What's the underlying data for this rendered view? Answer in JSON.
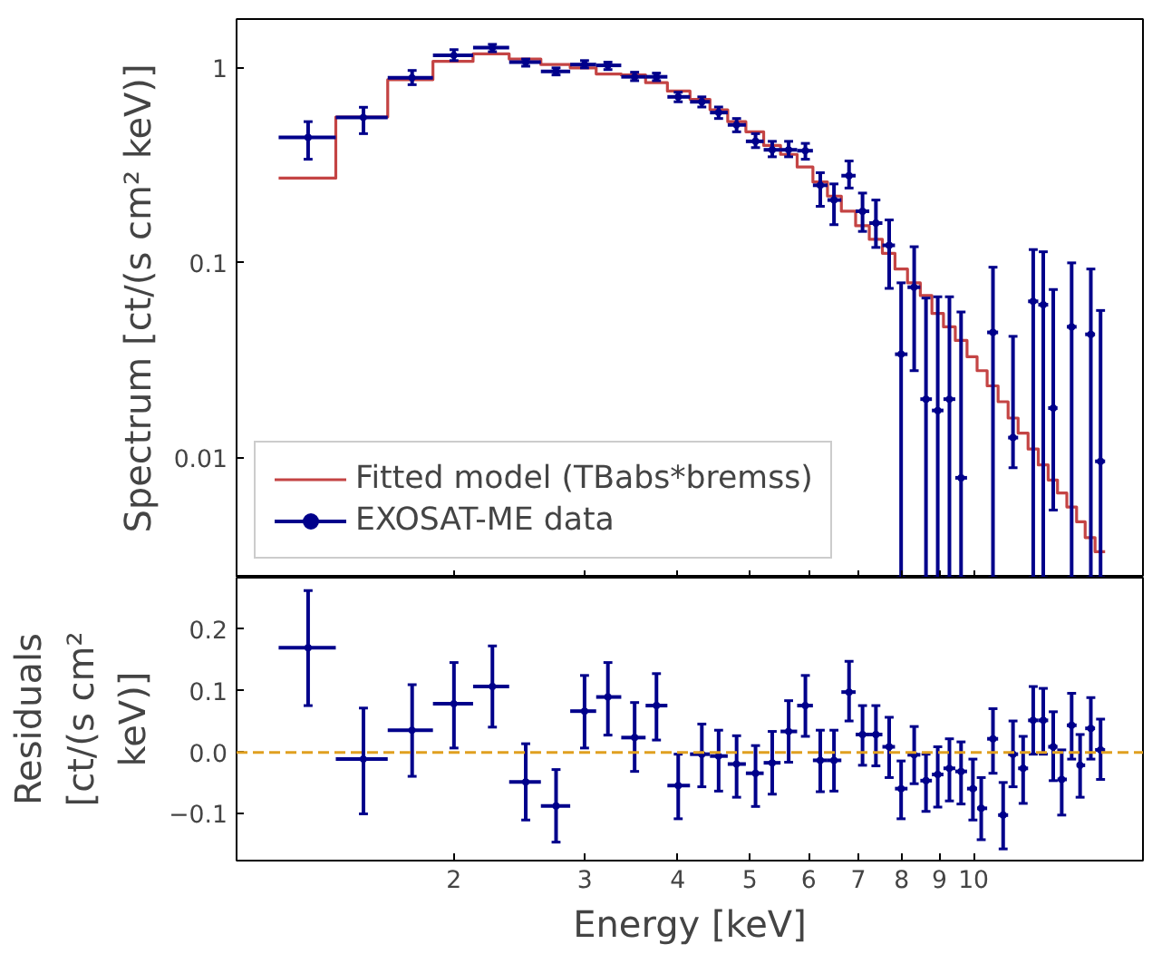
{
  "chart_data": [
    {
      "type": "scatter",
      "ylabel": "Spectrum [ct/(s cm² keV)]",
      "log": "xy",
      "xlim": [
        1.02,
        16.9
      ],
      "ylim": [
        0.00243,
        1.78
      ],
      "xticks": [
        2,
        3,
        4,
        5,
        6,
        7,
        8,
        9,
        10
      ],
      "yticks": [
        0.01,
        0.1,
        1
      ],
      "tick_labels": "y",
      "grid": false,
      "legend": "bottom left",
      "x": [
        1.273,
        1.511,
        1.757,
        2.0,
        2.253,
        2.498,
        2.744,
        2.997,
        3.222,
        3.5,
        3.745,
        4.006,
        4.31,
        4.54,
        4.8,
        5.09,
        5.36,
        5.64,
        5.94,
        6.22,
        6.49,
        6.8,
        7.09,
        7.39,
        7.7,
        7.99,
        8.32,
        8.63,
        8.95,
        9.28,
        9.62,
        9.98,
        10.24,
        10.62,
        10.96,
        11.3,
        11.66,
        12.03,
        12.41,
        12.8,
        13.14,
        13.55,
        13.91,
        14.38,
        14.82
      ],
      "series": [
        {
          "type": "step",
          "name": "Fitted model (TBabs*bremss)",
          "color": "#c44444",
          "line_style": "solid",
          "x": [
            1.162,
            1.387,
            1.629,
            1.874,
            2.122,
            2.373,
            2.618,
            2.867,
            3.107,
            3.358,
            3.621,
            3.874,
            4.155,
            4.42,
            4.67,
            4.94,
            5.22,
            5.5,
            5.79,
            6.08,
            6.36,
            6.64,
            6.94,
            7.24,
            7.54,
            7.84,
            8.15,
            8.48,
            8.79,
            9.11,
            9.45,
            9.8,
            10.11,
            10.43,
            10.79,
            11.13,
            11.48,
            11.84,
            12.22,
            12.6,
            12.97,
            13.35,
            13.76,
            14.13,
            14.57,
            15.03
          ],
          "values": [
            0.272,
            0.56,
            0.87,
            1.08,
            1.18,
            1.11,
            1.04,
            1.0,
            0.93,
            0.92,
            0.84,
            0.76,
            0.69,
            0.61,
            0.53,
            0.47,
            0.4,
            0.36,
            0.31,
            0.26,
            0.22,
            0.184,
            0.155,
            0.132,
            0.112,
            0.093,
            0.079,
            0.068,
            0.055,
            0.047,
            0.04,
            0.033,
            0.028,
            0.0234,
            0.0194,
            0.016,
            0.0134,
            0.0111,
            0.0092,
            0.0077,
            0.0066,
            0.0056,
            0.0047,
            0.0039,
            0.0033,
            0.0033
          ]
        },
        {
          "type": "scatter",
          "name": "EXOSAT-ME data",
          "color": "#00008b",
          "marker": "circle",
          "values": [
            0.44,
            0.557,
            0.89,
            1.16,
            1.27,
            1.07,
            0.96,
            1.04,
            1.03,
            0.9,
            0.9,
            0.71,
            0.67,
            0.59,
            0.51,
            0.42,
            0.38,
            0.38,
            0.376,
            0.25,
            0.21,
            0.28,
            0.184,
            0.16,
            0.123,
            0.034,
            0.075,
            0.02,
            0.0175,
            0.02,
            0.0079,
            null,
            null,
            0.044,
            null,
            0.0127,
            null,
            0.0635,
            0.061,
            0.018,
            null,
            0.047,
            null,
            0.043,
            0.0096
          ],
          "errors": [
            [
              0.34,
              0.53
            ],
            [
              0.46,
              0.628
            ],
            [
              0.82,
              0.97
            ],
            [
              1.09,
              1.24
            ],
            [
              1.21,
              1.32
            ],
            [
              1.02,
              1.11
            ],
            [
              0.92,
              1.0
            ],
            [
              1.0,
              1.09
            ],
            [
              0.98,
              1.07
            ],
            [
              0.86,
              0.95
            ],
            [
              0.86,
              0.94
            ],
            [
              0.67,
              0.75
            ],
            [
              0.63,
              0.71
            ],
            [
              0.55,
              0.63
            ],
            [
              0.47,
              0.55
            ],
            [
              0.39,
              0.46
            ],
            [
              0.35,
              0.42
            ],
            [
              0.35,
              0.42
            ],
            [
              0.34,
              0.41
            ],
            [
              0.195,
              0.29
            ],
            [
              0.157,
              0.254
            ],
            [
              0.242,
              0.333
            ],
            [
              0.145,
              0.228
            ],
            [
              0.12,
              0.21
            ],
            [
              0.074,
              0.166
            ],
            [
              0.00243,
              0.079
            ],
            [
              0.028,
              0.121
            ],
            [
              0.00243,
              0.066
            ],
            [
              0.00243,
              0.067
            ],
            [
              0.00243,
              0.067
            ],
            [
              0.00243,
              0.056
            ],
            null,
            null,
            [
              0.00243,
              0.095
            ],
            null,
            [
              0.0089,
              0.042
            ],
            null,
            [
              0.00243,
              0.117
            ],
            [
              0.00243,
              0.114
            ],
            [
              0.0054,
              0.073
            ],
            null,
            [
              0.00243,
              0.1
            ],
            null,
            [
              0.00243,
              0.093
            ],
            [
              0.00243,
              0.057
            ]
          ],
          "xerrors": [
            [
              1.162,
              1.387
            ],
            [
              1.387,
              1.629
            ],
            [
              1.629,
              1.874
            ],
            [
              1.874,
              2.122
            ],
            [
              2.122,
              2.373
            ],
            [
              2.373,
              2.618
            ],
            [
              2.618,
              2.867
            ],
            [
              2.867,
              3.107
            ],
            [
              3.107,
              3.358
            ],
            [
              3.358,
              3.621
            ],
            [
              3.621,
              3.874
            ],
            [
              3.874,
              4.155
            ],
            [
              4.155,
              4.42
            ],
            [
              4.42,
              4.67
            ],
            [
              4.67,
              4.94
            ],
            [
              4.94,
              5.22
            ],
            [
              5.22,
              5.5
            ],
            [
              5.5,
              5.79
            ],
            [
              5.79,
              6.08
            ],
            [
              6.08,
              6.36
            ],
            [
              6.36,
              6.64
            ],
            [
              6.64,
              6.94
            ],
            [
              6.94,
              7.24
            ],
            [
              7.24,
              7.54
            ],
            [
              7.54,
              7.84
            ],
            [
              7.84,
              8.15
            ],
            [
              8.15,
              8.48
            ],
            [
              8.48,
              8.79
            ],
            [
              8.79,
              9.11
            ],
            [
              9.11,
              9.45
            ],
            [
              9.45,
              9.8
            ],
            null,
            null,
            [
              10.43,
              10.79
            ],
            null,
            [
              11.13,
              11.48
            ],
            null,
            [
              11.84,
              12.22
            ],
            [
              12.22,
              12.6
            ],
            [
              12.6,
              12.97
            ],
            null,
            [
              13.35,
              13.76
            ],
            null,
            [
              14.13,
              14.57
            ],
            [
              14.57,
              15.03
            ]
          ]
        }
      ]
    },
    {
      "type": "scatter",
      "xlabel": "Energy [keV]",
      "ylabel": "Residuals [ct/(s cm² keV)]",
      "log": "x",
      "xlim": [
        1.02,
        16.9
      ],
      "ylim": [
        -0.176,
        0.284
      ],
      "xticks": [
        2,
        3,
        4,
        5,
        6,
        7,
        8,
        9,
        10
      ],
      "yticks": [
        {
          "value": -0.1,
          "label": "−0.1"
        },
        {
          "value": 0,
          "label": "0.0"
        },
        0.1,
        0.2
      ],
      "grid": false,
      "marker": "circle",
      "ref_lines": [
        {
          "axis": "y",
          "value": 0,
          "color": "#e0a020",
          "line_style": "dashed"
        }
      ],
      "x": [
        1.273,
        1.511,
        1.757,
        2.0,
        2.253,
        2.498,
        2.744,
        2.997,
        3.222,
        3.5,
        3.745,
        4.006,
        4.31,
        4.54,
        4.8,
        5.09,
        5.36,
        5.64,
        5.94,
        6.22,
        6.49,
        6.8,
        7.09,
        7.39,
        7.7,
        7.99,
        8.32,
        8.63,
        8.95,
        9.28,
        9.62,
        9.98,
        10.24,
        10.62,
        10.96,
        11.3,
        11.66,
        12.03,
        12.41,
        12.8,
        13.14,
        13.55,
        13.91,
        14.38,
        14.82
      ],
      "series": [
        {
          "color": "#00008b",
          "values": [
            0.17,
            -0.011,
            0.036,
            0.079,
            0.107,
            -0.048,
            -0.087,
            0.067,
            0.09,
            0.024,
            0.076,
            -0.054,
            -0.003,
            -0.006,
            -0.019,
            -0.034,
            -0.017,
            0.034,
            0.076,
            -0.013,
            -0.013,
            0.098,
            0.029,
            0.029,
            0.009,
            -0.059,
            -0.004,
            -0.046,
            -0.036,
            -0.026,
            -0.031,
            -0.059,
            -0.091,
            0.022,
            -0.102,
            -0.003,
            -0.026,
            0.052,
            0.052,
            0.009,
            -0.044,
            0.044,
            -0.021,
            0.039,
            0.004
          ],
          "errors": [
            [
              0.076,
              0.263
            ],
            [
              -0.1,
              0.072
            ],
            [
              -0.039,
              0.11
            ],
            [
              0.007,
              0.146
            ],
            [
              0.041,
              0.173
            ],
            [
              -0.11,
              0.014
            ],
            [
              -0.146,
              -0.028
            ],
            [
              0.007,
              0.125
            ],
            [
              0.028,
              0.146
            ],
            [
              -0.031,
              0.081
            ],
            [
              0.02,
              0.128
            ],
            [
              -0.108,
              -0.003
            ],
            [
              -0.056,
              0.046
            ],
            [
              -0.063,
              0.036
            ],
            [
              -0.073,
              0.027
            ],
            [
              -0.088,
              0.011
            ],
            [
              -0.068,
              0.034
            ],
            [
              -0.016,
              0.084
            ],
            [
              0.026,
              0.125
            ],
            [
              -0.064,
              0.036
            ],
            [
              -0.063,
              0.036
            ],
            [
              0.051,
              0.148
            ],
            [
              -0.021,
              0.076
            ],
            [
              -0.022,
              0.076
            ],
            [
              -0.041,
              0.057
            ],
            [
              -0.108,
              -0.014
            ],
            [
              -0.051,
              0.042
            ],
            [
              -0.096,
              -0.003
            ],
            [
              -0.089,
              0.009
            ],
            [
              -0.079,
              0.022
            ],
            [
              -0.084,
              0.017
            ],
            [
              -0.11,
              -0.011
            ],
            [
              -0.142,
              -0.041
            ],
            [
              -0.034,
              0.071
            ],
            [
              -0.157,
              -0.049
            ],
            [
              -0.056,
              0.051
            ],
            [
              -0.083,
              0.026
            ],
            [
              -0.003,
              0.107
            ],
            [
              -0.003,
              0.104
            ],
            [
              -0.046,
              0.066
            ],
            [
              -0.102,
              0.004
            ],
            [
              -0.011,
              0.096
            ],
            [
              -0.073,
              0.029
            ],
            [
              -0.011,
              0.089
            ],
            [
              -0.044,
              0.054
            ]
          ],
          "xerrors": [
            [
              1.162,
              1.387
            ],
            [
              1.387,
              1.629
            ],
            [
              1.629,
              1.874
            ],
            [
              1.874,
              2.122
            ],
            [
              2.122,
              2.373
            ],
            [
              2.373,
              2.618
            ],
            [
              2.618,
              2.867
            ],
            [
              2.867,
              3.107
            ],
            [
              3.107,
              3.358
            ],
            [
              3.358,
              3.621
            ],
            [
              3.621,
              3.874
            ],
            [
              3.874,
              4.155
            ],
            [
              4.155,
              4.42
            ],
            [
              4.42,
              4.67
            ],
            [
              4.67,
              4.94
            ],
            [
              4.94,
              5.22
            ],
            [
              5.22,
              5.5
            ],
            [
              5.5,
              5.79
            ],
            [
              5.79,
              6.08
            ],
            [
              6.08,
              6.36
            ],
            [
              6.36,
              6.64
            ],
            [
              6.64,
              6.94
            ],
            [
              6.94,
              7.24
            ],
            [
              7.24,
              7.54
            ],
            [
              7.54,
              7.84
            ],
            [
              7.84,
              8.15
            ],
            [
              8.15,
              8.48
            ],
            [
              8.48,
              8.79
            ],
            [
              8.79,
              9.11
            ],
            [
              9.11,
              9.45
            ],
            [
              9.45,
              9.8
            ],
            [
              9.8,
              10.11
            ],
            [
              10.11,
              10.43
            ],
            [
              10.43,
              10.79
            ],
            [
              10.79,
              11.13
            ],
            [
              11.13,
              11.48
            ],
            [
              11.48,
              11.84
            ],
            [
              11.84,
              12.22
            ],
            [
              12.22,
              12.6
            ],
            [
              12.6,
              12.97
            ],
            [
              12.97,
              13.35
            ],
            [
              13.35,
              13.76
            ],
            [
              13.76,
              14.13
            ],
            [
              14.13,
              14.57
            ],
            [
              14.57,
              15.03
            ]
          ]
        }
      ]
    }
  ]
}
